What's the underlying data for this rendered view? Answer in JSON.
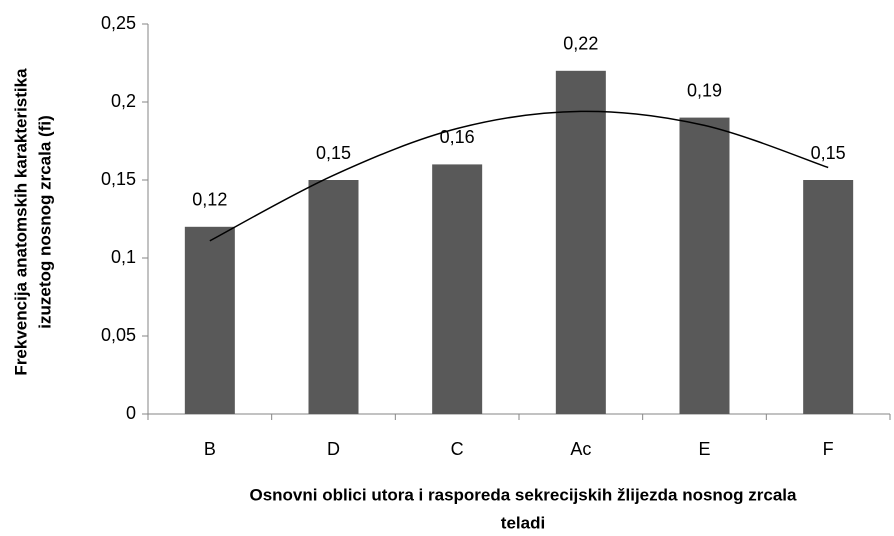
{
  "chart_data": {
    "type": "bar",
    "categories": [
      "B",
      "D",
      "C",
      "Ac",
      "E",
      "F"
    ],
    "values": [
      0.12,
      0.15,
      0.16,
      0.22,
      0.19,
      0.15
    ],
    "value_labels": [
      "0,12",
      "0,15",
      "0,16",
      "0,22",
      "0,19",
      "0,15"
    ],
    "color": "#595959",
    "ylim": [
      0,
      0.25
    ],
    "yticks": [
      {
        "value": 0,
        "label": "0"
      },
      {
        "value": 0.05,
        "label": "0,05"
      },
      {
        "value": 0.1,
        "label": "0,1"
      },
      {
        "value": 0.15,
        "label": "0,15"
      },
      {
        "value": 0.2,
        "label": "0,2"
      },
      {
        "value": 0.25,
        "label": "0,25"
      }
    ],
    "x_label": [
      "Osnovni oblici utora i rasporeda sekrecijskih žlijezda nosnog zrcala",
      "teladi"
    ],
    "y_label": [
      "Frekvencija anatomskih karakteristika",
      "izuzetog nosnog zrcala  (fi)"
    ],
    "trendline": {
      "color": "#000000",
      "values": [
        0.111,
        0.153,
        0.183,
        0.194,
        0.185,
        0.158
      ]
    }
  }
}
